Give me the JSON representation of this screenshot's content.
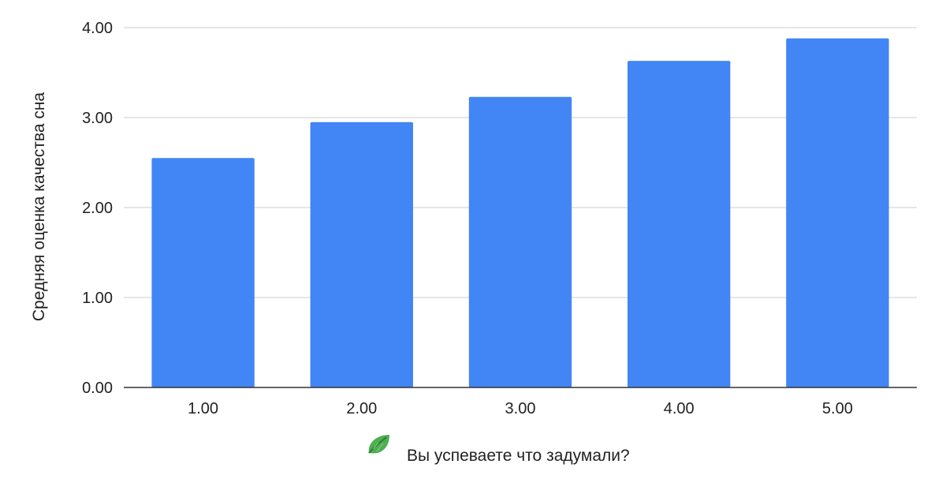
{
  "chart_data": {
    "type": "bar",
    "categories": [
      "1.00",
      "2.00",
      "3.00",
      "4.00",
      "5.00"
    ],
    "values": [
      2.55,
      2.95,
      3.23,
      3.63,
      3.88
    ],
    "xlabel": "Вы успеваете что задумали?",
    "xlabel_icon": "green-leaf-icon",
    "ylabel": "Средняя оценка качества сна",
    "ylim": [
      0,
      4
    ],
    "yticks": [
      "0.00",
      "1.00",
      "2.00",
      "3.00",
      "4.00"
    ],
    "bar_color": "#4285f4",
    "grid": true,
    "legend": "none"
  }
}
